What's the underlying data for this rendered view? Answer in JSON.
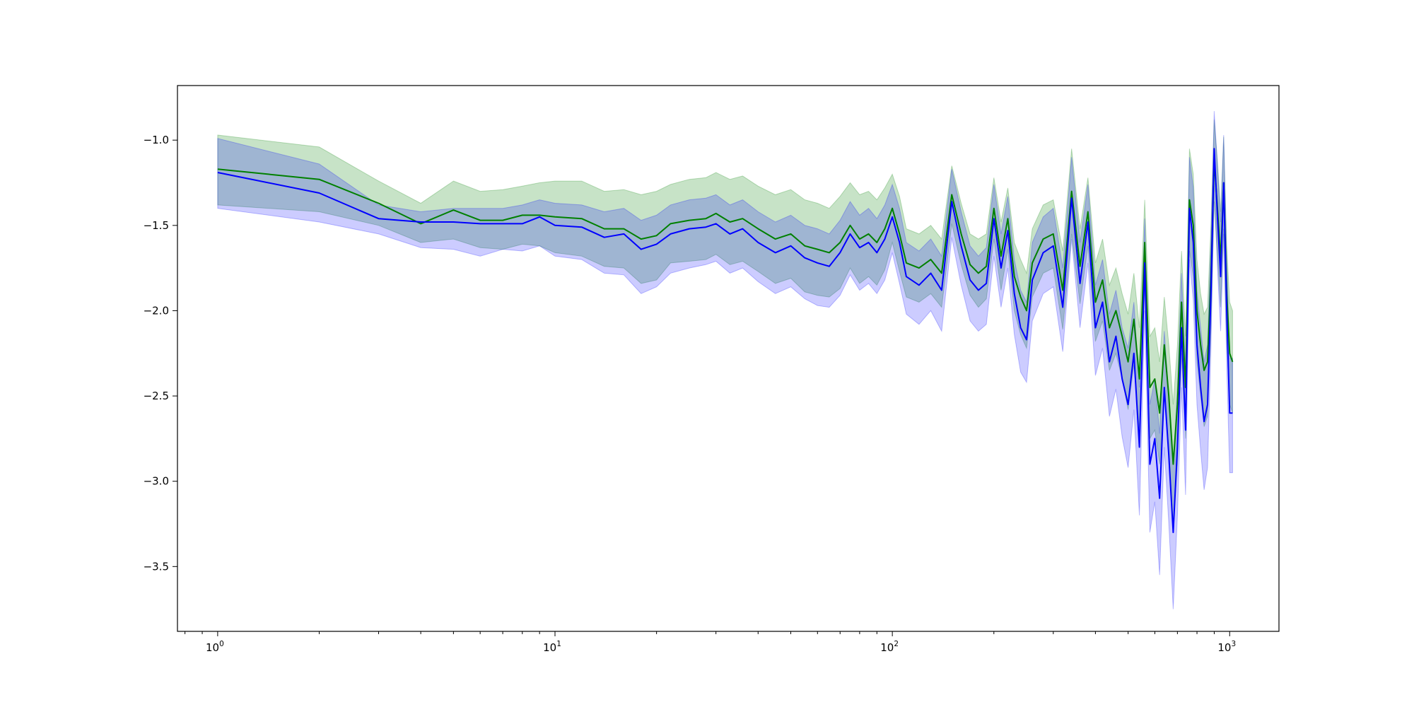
{
  "chart_data": {
    "type": "line",
    "title": "",
    "xlabel": "",
    "ylabel": "",
    "x_scale": "log",
    "xlim": [
      0.76,
      1400
    ],
    "ylim": [
      -3.88,
      -0.68
    ],
    "grid": false,
    "legend": "none",
    "x_ticks": [
      {
        "value": 1,
        "base": "10",
        "exp": "0"
      },
      {
        "value": 10,
        "base": "10",
        "exp": "1"
      },
      {
        "value": 100,
        "base": "10",
        "exp": "2"
      },
      {
        "value": 1000,
        "base": "10",
        "exp": "3"
      }
    ],
    "y_ticks": [
      {
        "value": -1.0,
        "label": "−1.0"
      },
      {
        "value": -1.5,
        "label": "−1.5"
      },
      {
        "value": -2.0,
        "label": "−2.0"
      },
      {
        "value": -2.5,
        "label": "−2.5"
      },
      {
        "value": -3.0,
        "label": "−3.0"
      },
      {
        "value": -3.5,
        "label": "−3.5"
      }
    ],
    "series": [
      {
        "color": "#008000",
        "band_color": "#008000",
        "band_opacity": 0.22,
        "x": [
          1,
          2,
          3,
          4,
          5,
          6,
          7,
          8,
          9,
          10,
          12,
          14,
          16,
          18,
          20,
          22,
          25,
          28,
          30,
          33,
          36,
          40,
          45,
          50,
          55,
          60,
          65,
          70,
          75,
          80,
          85,
          90,
          95,
          100,
          105,
          110,
          120,
          130,
          140,
          150,
          160,
          170,
          180,
          190,
          200,
          210,
          220,
          230,
          240,
          250,
          260,
          280,
          300,
          320,
          340,
          360,
          380,
          400,
          420,
          440,
          460,
          480,
          500,
          520,
          540,
          560,
          580,
          600,
          620,
          640,
          660,
          680,
          700,
          720,
          740,
          760,
          780,
          800,
          820,
          840,
          860,
          880,
          900,
          920,
          940,
          960,
          980,
          1000,
          1020
        ],
        "mean": [
          -1.17,
          -1.23,
          -1.37,
          -1.49,
          -1.41,
          -1.47,
          -1.47,
          -1.44,
          -1.44,
          -1.45,
          -1.46,
          -1.52,
          -1.52,
          -1.58,
          -1.56,
          -1.49,
          -1.47,
          -1.46,
          -1.43,
          -1.48,
          -1.46,
          -1.52,
          -1.58,
          -1.55,
          -1.62,
          -1.64,
          -1.66,
          -1.6,
          -1.5,
          -1.58,
          -1.55,
          -1.6,
          -1.52,
          -1.4,
          -1.55,
          -1.72,
          -1.75,
          -1.7,
          -1.78,
          -1.32,
          -1.55,
          -1.73,
          -1.78,
          -1.74,
          -1.4,
          -1.68,
          -1.46,
          -1.8,
          -1.92,
          -2.0,
          -1.72,
          -1.58,
          -1.55,
          -1.88,
          -1.3,
          -1.74,
          -1.42,
          -1.95,
          -1.82,
          -2.1,
          -2.0,
          -2.15,
          -2.3,
          -2.05,
          -2.4,
          -1.6,
          -2.45,
          -2.4,
          -2.6,
          -2.2,
          -2.5,
          -2.9,
          -2.55,
          -1.95,
          -2.45,
          -1.35,
          -1.5,
          -2.0,
          -2.2,
          -2.35,
          -2.3,
          -1.8,
          -1.12,
          -1.4,
          -1.7,
          -1.25,
          -1.9,
          -2.25,
          -2.3
        ],
        "upper": [
          -0.97,
          -1.04,
          -1.24,
          -1.37,
          -1.24,
          -1.3,
          -1.29,
          -1.27,
          -1.25,
          -1.24,
          -1.24,
          -1.3,
          -1.29,
          -1.32,
          -1.3,
          -1.26,
          -1.23,
          -1.22,
          -1.19,
          -1.23,
          -1.21,
          -1.27,
          -1.32,
          -1.29,
          -1.35,
          -1.37,
          -1.4,
          -1.33,
          -1.25,
          -1.32,
          -1.3,
          -1.35,
          -1.28,
          -1.2,
          -1.33,
          -1.52,
          -1.55,
          -1.5,
          -1.58,
          -1.15,
          -1.37,
          -1.55,
          -1.58,
          -1.55,
          -1.22,
          -1.48,
          -1.28,
          -1.6,
          -1.7,
          -1.78,
          -1.52,
          -1.38,
          -1.35,
          -1.65,
          -1.05,
          -1.52,
          -1.22,
          -1.72,
          -1.58,
          -1.85,
          -1.75,
          -1.9,
          -2.02,
          -1.78,
          -2.1,
          -1.35,
          -2.15,
          -2.1,
          -2.3,
          -1.92,
          -2.2,
          -2.55,
          -2.2,
          -1.65,
          -2.15,
          -1.05,
          -1.2,
          -1.7,
          -1.9,
          -2.02,
          -1.98,
          -1.5,
          -0.88,
          -1.12,
          -1.42,
          -0.98,
          -1.62,
          -1.95,
          -2.0
        ],
        "lower": [
          -1.38,
          -1.42,
          -1.5,
          -1.6,
          -1.58,
          -1.63,
          -1.64,
          -1.61,
          -1.62,
          -1.66,
          -1.68,
          -1.74,
          -1.75,
          -1.84,
          -1.82,
          -1.72,
          -1.71,
          -1.7,
          -1.67,
          -1.73,
          -1.71,
          -1.77,
          -1.84,
          -1.81,
          -1.89,
          -1.91,
          -1.92,
          -1.87,
          -1.75,
          -1.84,
          -1.8,
          -1.85,
          -1.76,
          -1.6,
          -1.77,
          -1.92,
          -1.95,
          -1.9,
          -1.98,
          -1.49,
          -1.73,
          -1.91,
          -1.98,
          -1.93,
          -1.58,
          -1.88,
          -1.64,
          -2.0,
          -2.14,
          -2.22,
          -1.92,
          -1.78,
          -1.75,
          -2.11,
          -1.55,
          -1.96,
          -1.62,
          -2.18,
          -2.06,
          -2.35,
          -2.25,
          -2.4,
          -2.58,
          -2.32,
          -2.7,
          -1.85,
          -2.75,
          -2.7,
          -2.9,
          -2.48,
          -2.8,
          -3.25,
          -2.9,
          -2.25,
          -2.75,
          -1.65,
          -1.8,
          -2.3,
          -2.5,
          -2.68,
          -2.62,
          -2.1,
          -1.36,
          -1.68,
          -1.98,
          -1.52,
          -2.18,
          -2.55,
          -2.6
        ]
      },
      {
        "color": "#0000ff",
        "band_color": "#0000ff",
        "band_opacity": 0.2,
        "x": [
          1,
          2,
          3,
          4,
          5,
          6,
          7,
          8,
          9,
          10,
          12,
          14,
          16,
          18,
          20,
          22,
          25,
          28,
          30,
          33,
          36,
          40,
          45,
          50,
          55,
          60,
          65,
          70,
          75,
          80,
          85,
          90,
          95,
          100,
          105,
          110,
          120,
          130,
          140,
          150,
          160,
          170,
          180,
          190,
          200,
          210,
          220,
          230,
          240,
          250,
          260,
          280,
          300,
          320,
          340,
          360,
          380,
          400,
          420,
          440,
          460,
          480,
          500,
          520,
          540,
          560,
          580,
          600,
          620,
          640,
          660,
          680,
          700,
          720,
          740,
          760,
          780,
          800,
          820,
          840,
          860,
          880,
          900,
          920,
          940,
          960,
          980,
          1000,
          1020
        ],
        "mean": [
          -1.19,
          -1.31,
          -1.46,
          -1.48,
          -1.48,
          -1.49,
          -1.49,
          -1.49,
          -1.45,
          -1.5,
          -1.51,
          -1.57,
          -1.55,
          -1.64,
          -1.61,
          -1.55,
          -1.52,
          -1.51,
          -1.49,
          -1.55,
          -1.52,
          -1.6,
          -1.66,
          -1.62,
          -1.69,
          -1.72,
          -1.74,
          -1.66,
          -1.55,
          -1.63,
          -1.6,
          -1.66,
          -1.58,
          -1.45,
          -1.6,
          -1.8,
          -1.85,
          -1.78,
          -1.88,
          -1.36,
          -1.62,
          -1.82,
          -1.88,
          -1.84,
          -1.46,
          -1.75,
          -1.53,
          -1.9,
          -2.1,
          -2.17,
          -1.82,
          -1.66,
          -1.62,
          -1.98,
          -1.34,
          -1.84,
          -1.48,
          -2.1,
          -1.95,
          -2.3,
          -2.15,
          -2.4,
          -2.55,
          -2.25,
          -2.8,
          -1.72,
          -2.9,
          -2.75,
          -3.1,
          -2.45,
          -2.85,
          -3.3,
          -2.8,
          -2.1,
          -2.7,
          -1.4,
          -1.6,
          -2.2,
          -2.45,
          -2.65,
          -2.55,
          -1.9,
          -1.05,
          -1.45,
          -1.8,
          -1.25,
          -2.0,
          -2.6,
          -2.6
        ],
        "upper": [
          -0.99,
          -1.14,
          -1.38,
          -1.42,
          -1.4,
          -1.4,
          -1.4,
          -1.38,
          -1.35,
          -1.37,
          -1.38,
          -1.42,
          -1.4,
          -1.47,
          -1.44,
          -1.38,
          -1.35,
          -1.34,
          -1.32,
          -1.38,
          -1.35,
          -1.42,
          -1.48,
          -1.44,
          -1.5,
          -1.52,
          -1.55,
          -1.47,
          -1.36,
          -1.44,
          -1.4,
          -1.46,
          -1.38,
          -1.26,
          -1.4,
          -1.6,
          -1.65,
          -1.58,
          -1.68,
          -1.17,
          -1.42,
          -1.62,
          -1.68,
          -1.63,
          -1.26,
          -1.55,
          -1.33,
          -1.7,
          -1.88,
          -1.95,
          -1.6,
          -1.45,
          -1.4,
          -1.75,
          -1.1,
          -1.6,
          -1.26,
          -1.85,
          -1.7,
          -2.02,
          -1.88,
          -2.1,
          -2.22,
          -1.95,
          -2.45,
          -1.46,
          -2.55,
          -2.4,
          -2.72,
          -2.12,
          -2.5,
          -2.9,
          -2.45,
          -1.78,
          -2.35,
          -1.1,
          -1.28,
          -1.88,
          -2.1,
          -2.3,
          -2.2,
          -1.58,
          -0.83,
          -1.15,
          -1.48,
          -0.97,
          -1.7,
          -2.28,
          -2.28
        ],
        "lower": [
          -1.4,
          -1.48,
          -1.55,
          -1.63,
          -1.64,
          -1.68,
          -1.64,
          -1.65,
          -1.62,
          -1.68,
          -1.7,
          -1.78,
          -1.79,
          -1.9,
          -1.86,
          -1.78,
          -1.75,
          -1.73,
          -1.71,
          -1.78,
          -1.75,
          -1.83,
          -1.9,
          -1.86,
          -1.93,
          -1.97,
          -1.98,
          -1.91,
          -1.79,
          -1.88,
          -1.84,
          -1.9,
          -1.82,
          -1.66,
          -1.84,
          -2.02,
          -2.08,
          -2.0,
          -2.12,
          -1.57,
          -1.85,
          -2.06,
          -2.12,
          -2.08,
          -1.68,
          -1.98,
          -1.75,
          -2.14,
          -2.36,
          -2.42,
          -2.06,
          -1.9,
          -1.86,
          -2.24,
          -1.58,
          -2.1,
          -1.72,
          -2.38,
          -2.22,
          -2.62,
          -2.46,
          -2.74,
          -2.92,
          -2.58,
          -3.2,
          -2.0,
          -3.3,
          -3.12,
          -3.55,
          -2.8,
          -3.25,
          -3.75,
          -3.2,
          -2.45,
          -3.08,
          -1.7,
          -1.94,
          -2.55,
          -2.82,
          -3.05,
          -2.92,
          -2.22,
          -1.27,
          -1.75,
          -2.12,
          -1.55,
          -2.32,
          -2.95,
          -2.95
        ]
      }
    ]
  }
}
